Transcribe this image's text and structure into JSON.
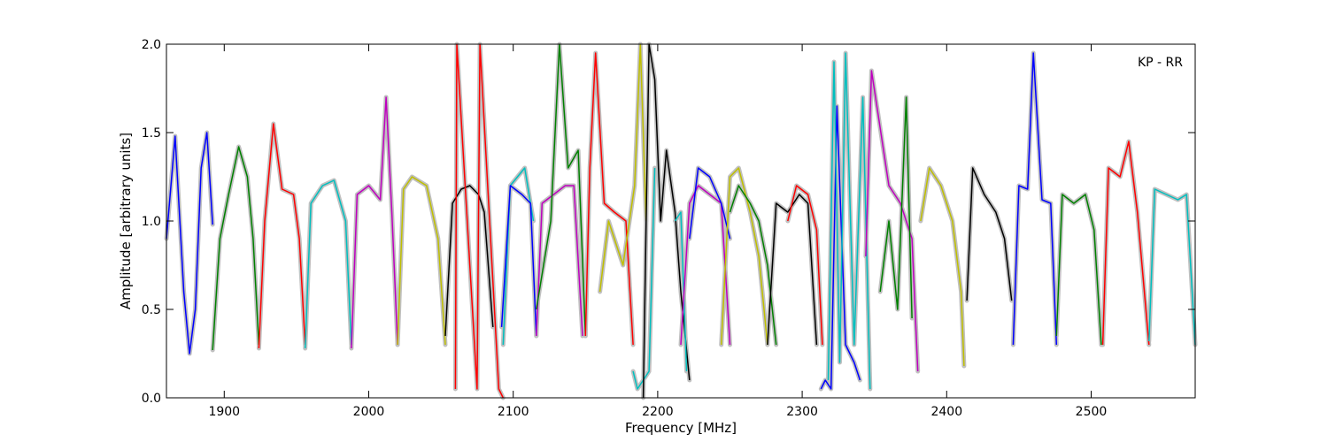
{
  "chart_data": {
    "type": "line",
    "annotation": "KP - RR",
    "xlabel": "Frequency [MHz]",
    "ylabel": "Amplitude [arbitrary units]",
    "xlim": [
      1860,
      2572
    ],
    "ylim": [
      0.0,
      2.0
    ],
    "xticks": [
      1900,
      2000,
      2100,
      2200,
      2300,
      2400,
      2500
    ],
    "xtick_labels": [
      "1900",
      "2000",
      "2100",
      "2200",
      "2300",
      "2400",
      "2500"
    ],
    "yticks": [
      0.0,
      0.5,
      1.0,
      1.5,
      2.0
    ],
    "ytick_labels": [
      "0.0",
      "0.5",
      "1.0",
      "1.5",
      "2.0"
    ],
    "grid": false,
    "background_series": {
      "name": "",
      "color": "#c0c0c0"
    },
    "series": [
      {
        "color": "#0000ff",
        "x": [
          1860,
          1866,
          1872,
          1876,
          1880,
          1884,
          1888,
          1892
        ],
        "y": [
          0.9,
          1.48,
          0.6,
          0.25,
          0.5,
          1.3,
          1.5,
          0.98
        ]
      },
      {
        "color": "#008000",
        "x": [
          1892,
          1897,
          1903,
          1910,
          1916,
          1920,
          1924
        ],
        "y": [
          0.27,
          0.9,
          1.15,
          1.42,
          1.25,
          0.9,
          0.3
        ]
      },
      {
        "color": "#ff0000",
        "x": [
          1924,
          1928,
          1934,
          1940,
          1948,
          1952,
          1956
        ],
        "y": [
          0.28,
          1.0,
          1.55,
          1.18,
          1.15,
          0.9,
          0.3
        ]
      },
      {
        "color": "#00bfbf",
        "x": [
          1956,
          1960,
          1968,
          1976,
          1984,
          1988
        ],
        "y": [
          0.28,
          1.1,
          1.2,
          1.23,
          1.0,
          0.3
        ]
      },
      {
        "color": "#bf00bf",
        "x": [
          1988,
          1992,
          2000,
          2008,
          2012,
          2016,
          2020
        ],
        "y": [
          0.28,
          1.15,
          1.2,
          1.12,
          1.7,
          1.05,
          0.3
        ]
      },
      {
        "color": "#bfbf00",
        "x": [
          2020,
          2024,
          2030,
          2040,
          2048,
          2053
        ],
        "y": [
          0.3,
          1.18,
          1.25,
          1.2,
          0.9,
          0.3
        ]
      },
      {
        "color": "#000000",
        "x": [
          2053,
          2058,
          2064,
          2070,
          2076,
          2080,
          2086
        ],
        "y": [
          0.35,
          1.1,
          1.18,
          1.2,
          1.15,
          1.05,
          0.4
        ]
      },
      {
        "color": "#ff0000",
        "x": [
          2060,
          2061,
          2075,
          2077,
          2090,
          2093
        ],
        "y": [
          0.05,
          2.0,
          0.05,
          2.0,
          0.05,
          0.0
        ]
      },
      {
        "color": "#00bfbf",
        "x": [
          2093,
          2098,
          2108,
          2114
        ],
        "y": [
          0.3,
          1.2,
          1.3,
          1.0
        ]
      },
      {
        "color": "#0000ff",
        "x": [
          2092,
          2098,
          2106,
          2112,
          2116
        ],
        "y": [
          0.4,
          1.2,
          1.15,
          1.1,
          0.35
        ]
      },
      {
        "color": "#bf00bf",
        "x": [
          2116,
          2120,
          2128,
          2136,
          2142,
          2148
        ],
        "y": [
          0.35,
          1.1,
          1.15,
          1.2,
          1.2,
          0.35
        ]
      },
      {
        "color": "#008000",
        "x": [
          2116,
          2126,
          2132,
          2138,
          2145,
          2150
        ],
        "y": [
          0.5,
          1.0,
          2.0,
          1.3,
          1.4,
          0.35
        ]
      },
      {
        "color": "#ff0000",
        "x": [
          2150,
          2153,
          2157,
          2163,
          2170,
          2178,
          2183
        ],
        "y": [
          0.35,
          1.3,
          1.95,
          1.1,
          1.05,
          1.0,
          0.3
        ]
      },
      {
        "color": "#bfbf00",
        "x": [
          2160,
          2166,
          2176,
          2184,
          2188,
          2192
        ],
        "y": [
          0.6,
          1.0,
          0.75,
          1.2,
          2.0,
          1.0
        ]
      },
      {
        "color": "#00bfbf",
        "x": [
          2183,
          2186,
          2190,
          2194,
          2198
        ],
        "y": [
          0.15,
          0.05,
          0.1,
          0.15,
          1.3
        ]
      },
      {
        "color": "#000000",
        "x": [
          2190,
          2194,
          2198,
          2202,
          2206,
          2212,
          2216,
          2222
        ],
        "y": [
          0.0,
          2.0,
          1.8,
          1.0,
          1.4,
          1.05,
          0.6,
          0.1
        ]
      },
      {
        "color": "#00bfbf",
        "x": [
          2212,
          2216,
          2220
        ],
        "y": [
          1.0,
          1.05,
          0.15
        ]
      },
      {
        "color": "#bf00bf",
        "x": [
          2216,
          2222,
          2228,
          2236,
          2244,
          2250
        ],
        "y": [
          0.3,
          1.1,
          1.2,
          1.15,
          1.1,
          0.3
        ]
      },
      {
        "color": "#0000ff",
        "x": [
          2222,
          2228,
          2236,
          2244,
          2250
        ],
        "y": [
          0.9,
          1.3,
          1.25,
          1.1,
          0.9
        ]
      },
      {
        "color": "#bfbf00",
        "x": [
          2244,
          2250,
          2256,
          2264,
          2270,
          2276
        ],
        "y": [
          0.3,
          1.25,
          1.3,
          1.05,
          0.8,
          0.3
        ]
      },
      {
        "color": "#008000",
        "x": [
          2250,
          2256,
          2264,
          2270,
          2276,
          2282
        ],
        "y": [
          1.05,
          1.2,
          1.1,
          1.0,
          0.75,
          0.3
        ]
      },
      {
        "color": "#000000",
        "x": [
          2276,
          2282,
          2290,
          2298,
          2304,
          2310
        ],
        "y": [
          0.3,
          1.1,
          1.05,
          1.15,
          1.1,
          0.3
        ]
      },
      {
        "color": "#ff0000",
        "x": [
          2290,
          2296,
          2304,
          2310,
          2314
        ],
        "y": [
          1.0,
          1.2,
          1.15,
          0.95,
          0.3
        ]
      },
      {
        "color": "#0000ff",
        "x": [
          2313,
          2316,
          2320,
          2324,
          2330,
          2336,
          2340
        ],
        "y": [
          0.05,
          0.1,
          0.05,
          1.65,
          0.3,
          0.2,
          0.1
        ]
      },
      {
        "color": "#00bfbf",
        "x": [
          2318,
          2322,
          2326,
          2330,
          2336,
          2342,
          2347
        ],
        "y": [
          0.1,
          1.9,
          0.2,
          1.95,
          0.3,
          1.7,
          0.05
        ]
      },
      {
        "color": "#bf00bf",
        "x": [
          2344,
          2348,
          2360,
          2368,
          2376,
          2380
        ],
        "y": [
          0.8,
          1.85,
          1.2,
          1.1,
          0.9,
          0.15
        ]
      },
      {
        "color": "#008000",
        "x": [
          2354,
          2360,
          2366,
          2372,
          2376
        ],
        "y": [
          0.6,
          1.0,
          0.5,
          1.7,
          0.45
        ]
      },
      {
        "color": "#bfbf00",
        "x": [
          2382,
          2388,
          2396,
          2404,
          2410,
          2412
        ],
        "y": [
          1.0,
          1.3,
          1.2,
          1.0,
          0.6,
          0.18
        ]
      },
      {
        "color": "#000000",
        "x": [
          2414,
          2418,
          2426,
          2434,
          2440,
          2445
        ],
        "y": [
          0.55,
          1.3,
          1.15,
          1.05,
          0.9,
          0.55
        ]
      },
      {
        "color": "#0000ff",
        "x": [
          2446,
          2450,
          2456,
          2460,
          2466,
          2472,
          2476
        ],
        "y": [
          0.3,
          1.2,
          1.18,
          1.95,
          1.12,
          1.1,
          0.3
        ]
      },
      {
        "color": "#008000",
        "x": [
          2476,
          2480,
          2488,
          2496,
          2502,
          2507
        ],
        "y": [
          0.35,
          1.15,
          1.1,
          1.15,
          0.95,
          0.3
        ]
      },
      {
        "color": "#ff0000",
        "x": [
          2508,
          2512,
          2520,
          2526,
          2532,
          2540
        ],
        "y": [
          0.3,
          1.3,
          1.25,
          1.45,
          1.05,
          0.3
        ]
      },
      {
        "color": "#00bfbf",
        "x": [
          2540,
          2544,
          2552,
          2560,
          2566,
          2572
        ],
        "y": [
          0.32,
          1.18,
          1.15,
          1.12,
          1.15,
          0.3
        ]
      }
    ]
  }
}
